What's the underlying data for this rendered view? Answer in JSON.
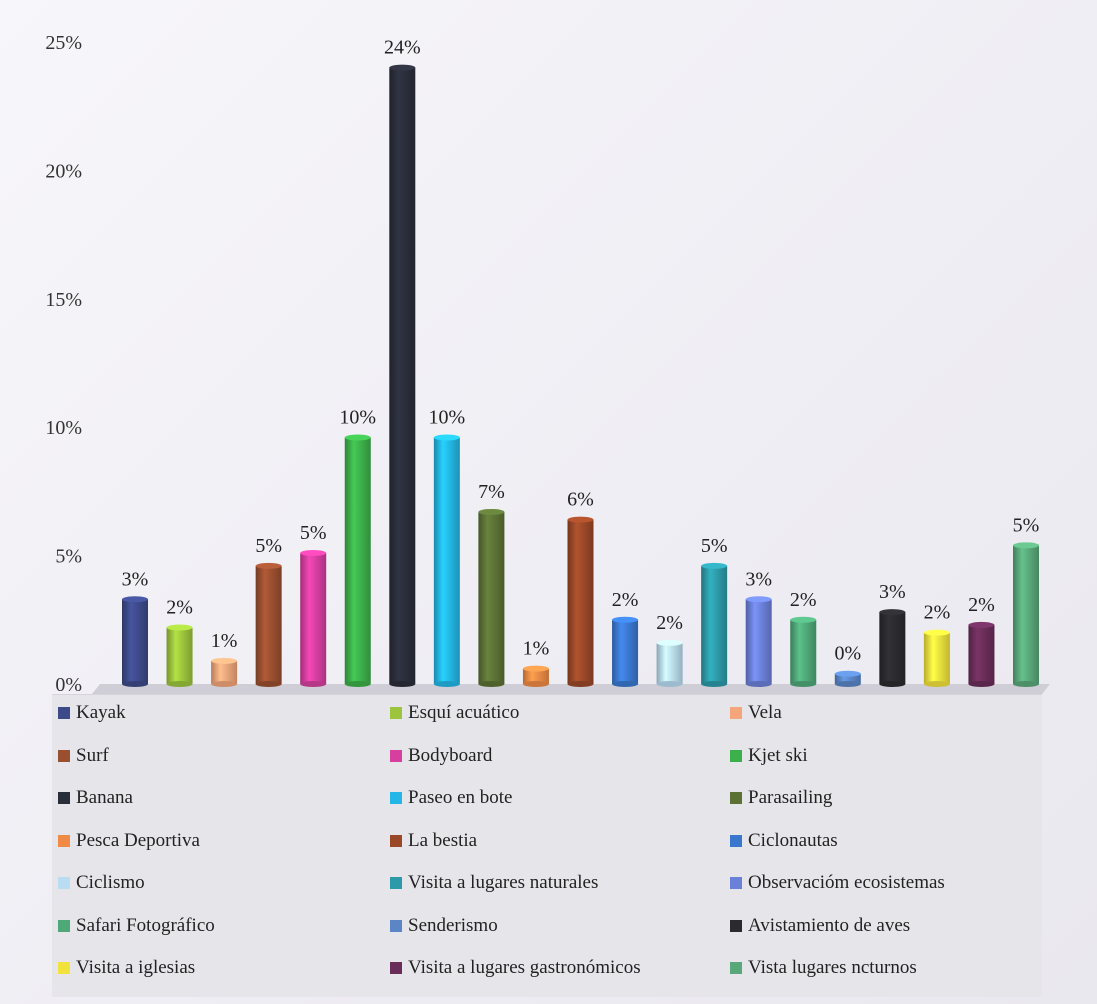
{
  "chart_data": {
    "type": "bar",
    "ylim": [
      0,
      25
    ],
    "yticks": [
      "0%",
      "5%",
      "10%",
      "15%",
      "20%",
      "25%"
    ],
    "legend_position": "bottom",
    "categories": [
      "Kayak",
      "Esquí acuático",
      "Vela",
      "Surf",
      "Bodyboard",
      "Kjet ski",
      "Banana",
      "Paseo en bote",
      "Parasailing",
      "Pesca Deportiva",
      "La bestia",
      "Ciclonautas",
      "Ciclismo",
      "Visita a lugares naturales",
      "Observacióm ecosistemas",
      "Safari Fotográfico",
      "Senderismo",
      "Avistamiento de aves",
      "Visita a iglesias",
      "Visita a lugares gastronómicos",
      "Vista lugares ncturnos"
    ],
    "values": [
      3.3,
      2.2,
      0.9,
      4.6,
      5.1,
      9.6,
      24.0,
      9.6,
      6.7,
      0.6,
      6.4,
      2.5,
      1.6,
      4.6,
      3.3,
      2.5,
      0.4,
      2.8,
      2.0,
      2.3,
      5.4
    ],
    "data_labels": [
      "3%",
      "2%",
      "1%",
      "5%",
      "5%",
      "10%",
      "24%",
      "10%",
      "7%",
      "1%",
      "6%",
      "2%",
      "2%",
      "5%",
      "3%",
      "2%",
      "0%",
      "3%",
      "2%",
      "2%",
      "5%"
    ],
    "colors": [
      "#3d4a8a",
      "#9cc43c",
      "#f4a57a",
      "#9a4f30",
      "#d63fa0",
      "#3cb04a",
      "#2a2d3a",
      "#23b6e6",
      "#5c7235",
      "#f08a45",
      "#9a4828",
      "#3a78d0",
      "#b9dcf2",
      "#2c9aa8",
      "#6b80d8",
      "#4fa878",
      "#5a86c8",
      "#2b2b2f",
      "#f2e23e",
      "#6a2d5a",
      "#59a87a"
    ]
  }
}
